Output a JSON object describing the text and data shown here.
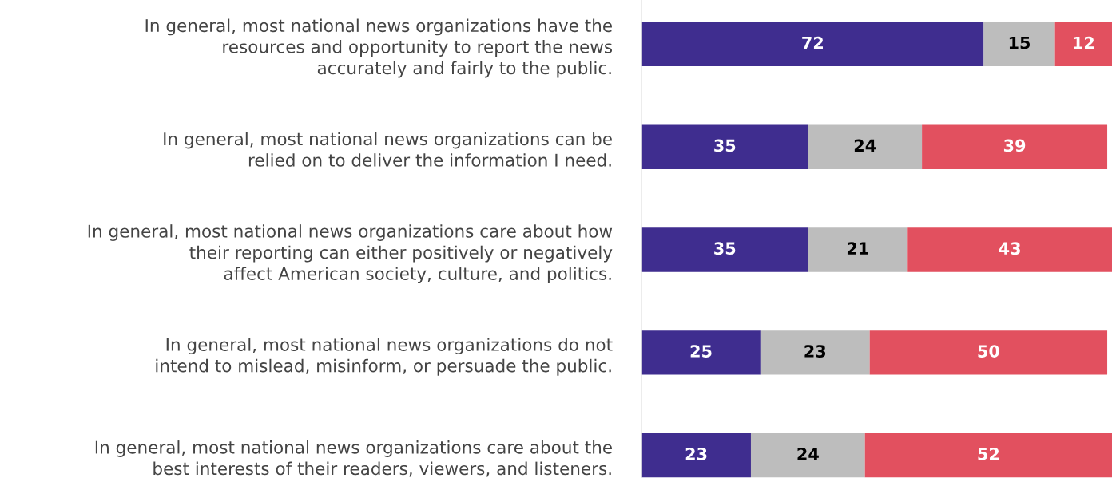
{
  "chart_data": {
    "type": "bar",
    "orientation": "horizontal",
    "stacked": true,
    "data_labels": true,
    "legend": false,
    "grid": false,
    "categories": [
      "In general, most national news organizations have the\nresources and opportunity to report the news\naccurately and fairly to the public.",
      "In general, most national news organizations can be\nrelied on to deliver the information I need.",
      "In general, most national news organizations care about how\ntheir reporting can either positively or negatively\naffect American society, culture, and politics.",
      "In general, most national news organizations do not\nintend to mislead, misinform, or persuade the public.",
      "In general, most national news organizations care about the\nbest interests of their readers, viewers, and listeners."
    ],
    "series": [
      {
        "color": "#3f2d8f",
        "values": [
          72,
          35,
          35,
          25,
          23
        ]
      },
      {
        "color": "#bdbdbd",
        "values": [
          15,
          24,
          21,
          23,
          24
        ]
      },
      {
        "color": "#e2505f",
        "values": [
          12,
          39,
          43,
          50,
          52
        ]
      }
    ]
  }
}
